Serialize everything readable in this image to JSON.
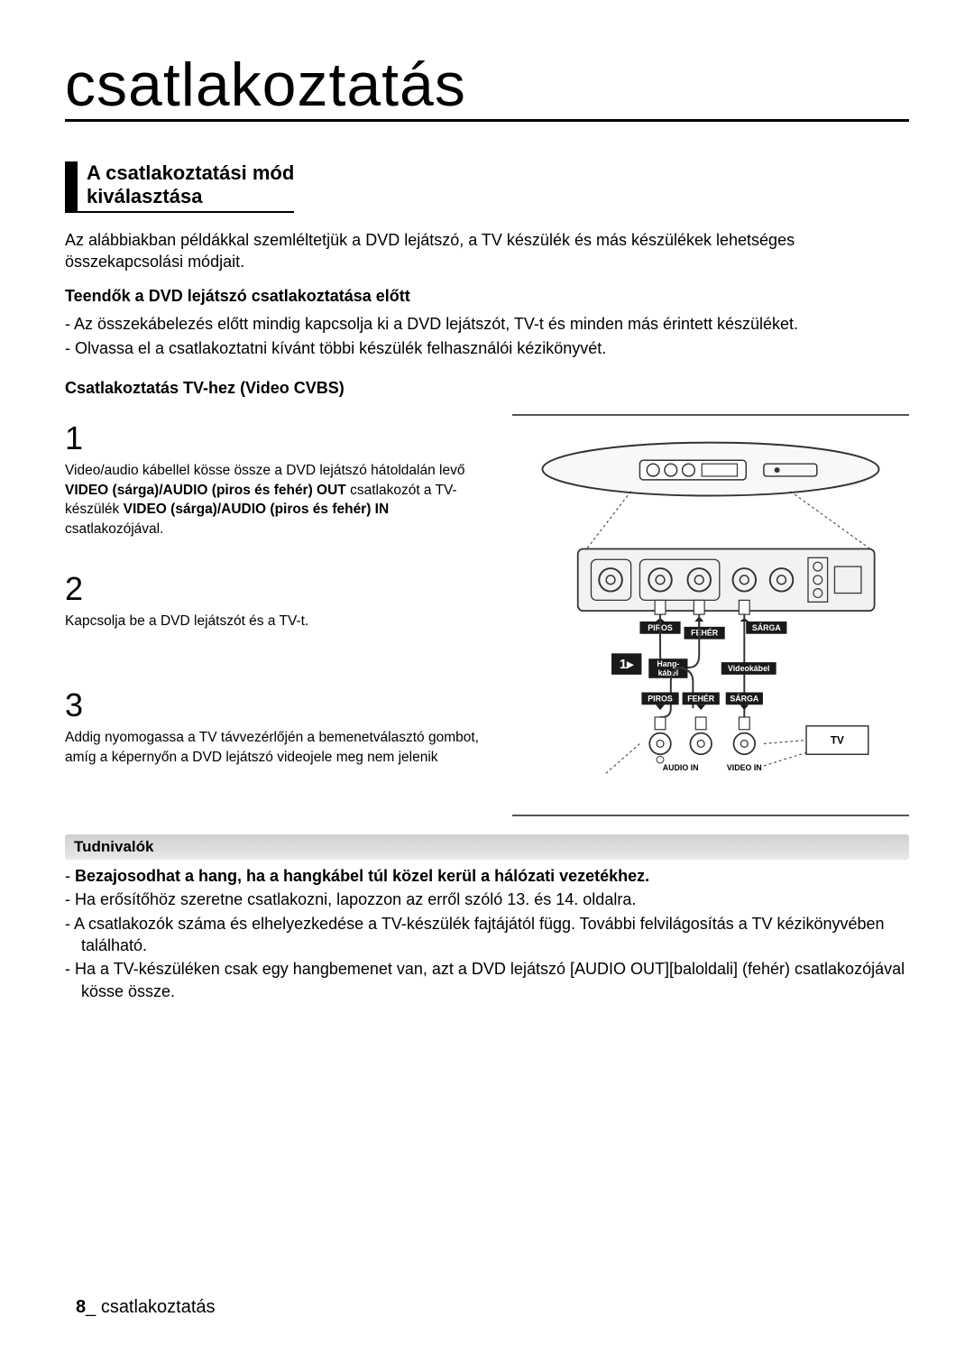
{
  "chapter": {
    "title": "csatlakoztatás"
  },
  "section": {
    "title_line1": "A csatlakoztatási mód",
    "title_line2": "kiválasztása"
  },
  "intro": "Az alábbiakban példákkal szemléltetjük a DVD lejátszó, a TV készülék és más készülékek lehetséges összekapcsolási módjait.",
  "pre_connect": {
    "heading": "Teendők a DVD lejátszó csatlakoztatása előtt",
    "bullets": [
      "Az összekábelezés előtt mindig kapcsolja ki a DVD lejátszót, TV-t és minden más érintett készüléket.",
      "Olvassa el a csatlakoztatni kívánt többi készülék felhasználói kézikönyvét."
    ]
  },
  "tv_cvbs": {
    "heading": "Csatlakoztatás TV-hez (Video CVBS)",
    "steps": [
      {
        "num": "1",
        "html": "Video/audio kábellel kösse össze a DVD lejátszó hátoldalán levő <b>VIDEO (sárga)/AUDIO (piros és fehér) OUT</b> csatlakozót a TV-készülék <b>VIDEO (sárga)/AUDIO (piros és fehér) IN</b> csatlakozójával."
      },
      {
        "num": "2",
        "html": "Kapcsolja be a DVD lejátszót és a TV-t."
      },
      {
        "num": "3",
        "html": "Addig nyomogassa a TV távvezérlőjén a bemenetválasztó gombot, amíg a képernyőn a DVD lejátszó videojele meg nem jelenik"
      }
    ]
  },
  "diagram": {
    "labels": {
      "piros": "PIROS",
      "feher": "FEHÉR",
      "sarga": "SÁRGA",
      "hangkabel": "Hang-kábel",
      "videokabel": "Videokábel",
      "audio_in": "AUDIO IN",
      "video_in": "VIDEO IN",
      "tv": "TV",
      "step_marker": "1▸"
    },
    "colors": {
      "stroke": "#222222",
      "panel_fill": "#f5f5f5",
      "label_bg": "#1a1a1a",
      "label_text": "#ffffff",
      "tv_fill": "#ffffff"
    }
  },
  "notes": {
    "heading": "Tudnivalók",
    "items": [
      {
        "bold": true,
        "text": "Bezajosodhat a hang, ha a hangkábel túl közel kerül a hálózati vezetékhez."
      },
      {
        "bold": false,
        "text": "Ha erősítőhöz szeretne csatlakozni, lapozzon az erről szóló 13. és 14. oldalra."
      },
      {
        "bold": false,
        "text": "A csatlakozók száma és elhelyezkedése a TV-készülék fajtájától függ. További felvilágosítás a TV kézikönyvében található."
      },
      {
        "bold": false,
        "text": "Ha a TV-készüléken csak egy hangbemenet van, azt a DVD lejátszó [AUDIO OUT][baloldali] (fehér) csatlakozójával kösse össze."
      }
    ]
  },
  "footer": {
    "page_num": "8",
    "sep": "_ ",
    "running": "csatlakoztatás"
  }
}
